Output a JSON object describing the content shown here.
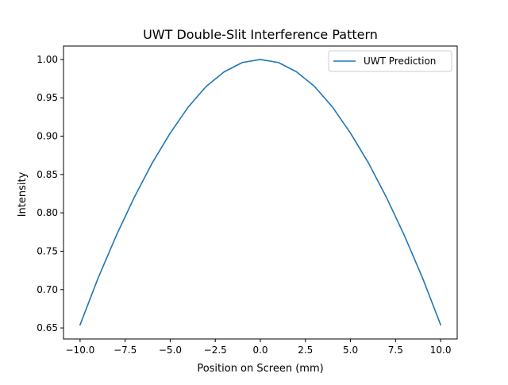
{
  "chart_data": {
    "type": "line",
    "title": "UWT Double-Slit Interference Pattern",
    "xlabel": "Position on Screen (mm)",
    "ylabel": "Intensity",
    "xlim": [
      -10.92,
      10.92
    ],
    "ylim": [
      0.6356,
      1.0175
    ],
    "xticks": [
      -10.0,
      -7.5,
      -5.0,
      -2.5,
      0.0,
      2.5,
      5.0,
      7.5,
      10.0
    ],
    "xtick_labels": [
      "−10.0",
      "−7.5",
      "−5.0",
      "−2.5",
      "0.0",
      "2.5",
      "5.0",
      "7.5",
      "10.0"
    ],
    "yticks": [
      0.65,
      0.7,
      0.75,
      0.8,
      0.85,
      0.9,
      0.95,
      1.0
    ],
    "ytick_labels": [
      "0.65",
      "0.70",
      "0.75",
      "0.80",
      "0.85",
      "0.90",
      "0.95",
      "1.00"
    ],
    "grid": false,
    "legend_position": "top-right",
    "series": [
      {
        "name": "UWT Prediction",
        "color": "#1f77b4",
        "x": [
          -10,
          -9,
          -8,
          -7,
          -6,
          -5,
          -4,
          -3,
          -2,
          -1,
          0,
          1,
          2,
          3,
          4,
          5,
          6,
          7,
          8,
          9,
          10
        ],
        "y": [
          0.654,
          0.715,
          0.77,
          0.82,
          0.865,
          0.904,
          0.938,
          0.965,
          0.984,
          0.996,
          1.0,
          0.996,
          0.984,
          0.965,
          0.938,
          0.904,
          0.865,
          0.82,
          0.77,
          0.715,
          0.654
        ]
      }
    ]
  }
}
